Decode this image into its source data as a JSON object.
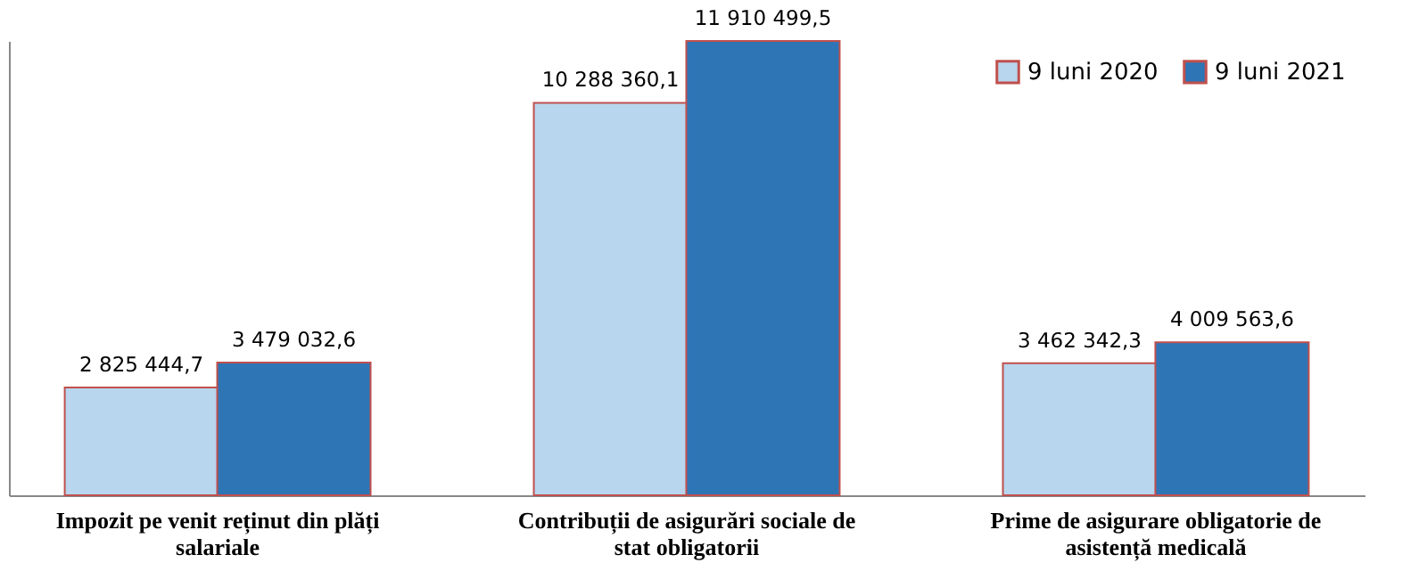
{
  "chart_data": {
    "type": "bar",
    "categories": [
      "Impozit  pe venit reținut din plăți salariale",
      "Contribuții  de asigurări sociale de stat obligatorii",
      "Prime de asigurare obligatorie de asistență  medicală"
    ],
    "series": [
      {
        "name": "9 luni 2020",
        "color": "#b8d6ee",
        "values": [
          2825444.7,
          10288360.1,
          3462342.3
        ],
        "value_labels": [
          "2 825 444,7",
          "10 288 360,1",
          "3 462 342,3"
        ]
      },
      {
        "name": "9 luni 2021",
        "color": "#2e75b6",
        "values": [
          3479032.6,
          11910499.5,
          4009563.6
        ],
        "value_labels": [
          "3 479 032,6",
          "11 910 499,5",
          "4 009 563,6"
        ]
      }
    ],
    "legend": "top right",
    "tick_labels": "x",
    "grid": false
  }
}
